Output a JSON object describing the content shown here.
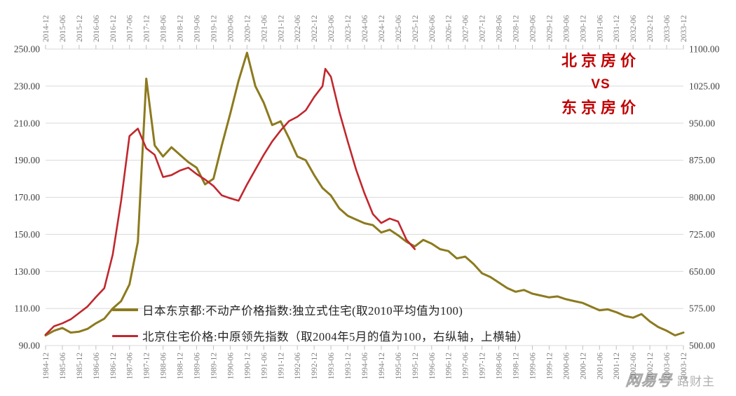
{
  "title": {
    "line1": "北京房价",
    "line2": "VS",
    "line3": "东京房价",
    "color": "#C00000"
  },
  "legend": {
    "items": [
      {
        "label": "日本东京都:不动产价格指数:独立式住宅(取2010平均值为100)",
        "color": "#8C7A1E"
      },
      {
        "label": "北京住宅价格:中原领先指数（取2004年5月的值为100，右纵轴，上横轴）",
        "color": "#C1272D"
      }
    ]
  },
  "watermark": {
    "logo": "网易号",
    "text": "路财主"
  },
  "colors": {
    "gridline": "#D9D9D9",
    "tick": "#BFBFBF",
    "date_label": "#808080",
    "number_label": "#3F3F3F"
  },
  "chart_data": {
    "type": "line",
    "title": "北京房价 VS 东京房价",
    "grid": "horizontal",
    "legend_position": "inside bottom-left",
    "left_axis": {
      "min": 90,
      "max": 250,
      "step": 20,
      "labels": [
        "250.00",
        "230.00",
        "210.00",
        "190.00",
        "170.00",
        "150.00",
        "130.00",
        "110.00",
        "90.00"
      ]
    },
    "right_axis": {
      "min": 500,
      "max": 1100,
      "step": 75,
      "labels": [
        "1100.00",
        "1025.00",
        "950.00",
        "875.00",
        "800.00",
        "725.00",
        "650.00",
        "575.00",
        "500.00"
      ]
    },
    "top_axis": {
      "start": "2014-12",
      "end": "2033-12",
      "labels": [
        "2014-12",
        "2015-06",
        "2015-12",
        "2016-06",
        "2016-12",
        "2017-06",
        "2017-12",
        "2018-06",
        "2018-12",
        "2019-06",
        "2019-12",
        "2020-06",
        "2020-12",
        "2021-06",
        "2021-12",
        "2022-06",
        "2022-12",
        "2023-06",
        "2023-12",
        "2024-06",
        "2024-12",
        "2025-06",
        "2025-12",
        "2026-06",
        "2026-12",
        "2027-06",
        "2027-12",
        "2028-06",
        "2028-12",
        "2029-06",
        "2029-12",
        "2030-06",
        "2030-12",
        "2031-06",
        "2031-12",
        "2032-06",
        "2032-12",
        "2033-06",
        "2033-12"
      ]
    },
    "bottom_axis": {
      "start": "1984-12",
      "end": "2003-12",
      "labels": [
        "1984-12",
        "1985-06",
        "1985-12",
        "1986-06",
        "1986-12",
        "1987-06",
        "1987-12",
        "1988-06",
        "1988-12",
        "1989-06",
        "1989-12",
        "1990-06",
        "1990-12",
        "1991-06",
        "1991-12",
        "1992-06",
        "1992-12",
        "1993-06",
        "1993-12",
        "1994-06",
        "1994-12",
        "1995-06",
        "1995-12",
        "1996-06",
        "1996-12",
        "1997-06",
        "1997-12",
        "1998-06",
        "1998-12",
        "1999-06",
        "1999-12",
        "2000-06",
        "2000-12",
        "2001-06",
        "2001-12",
        "2002-06",
        "2002-12",
        "2003-06",
        "2003-12"
      ]
    },
    "series": [
      {
        "name": "日本东京都:不动产价格指数:独立式住宅(取2010平均值为100)",
        "axis": "left",
        "x_axis": "bottom",
        "color": "#8C7A1E",
        "width": 3,
        "x": [
          "1984-12",
          "1985-03",
          "1985-06",
          "1985-09",
          "1985-12",
          "1986-03",
          "1986-06",
          "1986-09",
          "1986-12",
          "1987-03",
          "1987-06",
          "1987-09",
          "1987-12",
          "1988-03",
          "1988-06",
          "1988-09",
          "1988-12",
          "1989-03",
          "1989-06",
          "1989-09",
          "1989-12",
          "1990-03",
          "1990-06",
          "1990-09",
          "1990-12",
          "1991-03",
          "1991-06",
          "1991-09",
          "1991-12",
          "1992-03",
          "1992-06",
          "1992-09",
          "1992-12",
          "1993-03",
          "1993-06",
          "1993-09",
          "1993-12",
          "1994-03",
          "1994-06",
          "1994-09",
          "1994-12",
          "1995-03",
          "1995-06",
          "1995-09",
          "1995-12",
          "1996-03",
          "1996-06",
          "1996-09",
          "1996-12",
          "1997-03",
          "1997-06",
          "1997-09",
          "1997-12",
          "1998-03",
          "1998-06",
          "1998-09",
          "1998-12",
          "1999-03",
          "1999-06",
          "1999-09",
          "1999-12",
          "2000-03",
          "2000-06",
          "2000-09",
          "2000-12",
          "2001-03",
          "2001-06",
          "2001-09",
          "2001-12",
          "2002-03",
          "2002-06",
          "2002-09",
          "2002-12",
          "2003-03",
          "2003-06",
          "2003-09",
          "2003-12"
        ],
        "values": [
          95.5,
          98,
          99.5,
          97,
          97.5,
          99,
          102,
          104.5,
          110,
          114,
          123,
          146,
          234,
          198,
          192,
          197,
          193,
          189,
          186,
          177,
          180,
          198,
          215,
          233,
          248,
          230,
          221,
          209,
          211,
          202,
          192,
          190,
          182,
          175,
          171,
          164,
          160,
          158,
          156,
          155,
          151,
          152.5,
          149.5,
          146,
          143.5,
          147,
          145,
          142,
          141,
          137,
          138,
          134,
          129,
          127,
          124,
          121,
          119,
          120,
          118,
          117,
          116,
          116.5,
          115,
          114,
          113,
          111,
          109,
          109.5,
          108,
          106,
          105,
          107,
          103,
          100,
          98,
          95.5,
          97
        ]
      },
      {
        "name": "北京住宅价格:中原领先指数",
        "axis": "right",
        "x_axis": "top",
        "color": "#C1272D",
        "width": 2.6,
        "x": [
          "2014-12",
          "2015-03",
          "2015-06",
          "2015-09",
          "2015-12",
          "2016-03",
          "2016-06",
          "2016-09",
          "2016-12",
          "2017-03",
          "2017-06",
          "2017-09",
          "2017-12",
          "2018-03",
          "2018-06",
          "2018-09",
          "2018-12",
          "2019-03",
          "2019-06",
          "2019-09",
          "2019-12",
          "2020-03",
          "2020-06",
          "2020-09",
          "2020-12",
          "2021-03",
          "2021-06",
          "2021-09",
          "2021-12",
          "2022-03",
          "2022-06",
          "2022-09",
          "2022-12",
          "2023-03",
          "2023-04",
          "2023-06",
          "2023-09",
          "2023-12",
          "2024-03",
          "2024-06",
          "2024-09",
          "2024-12",
          "2025-03",
          "2025-06",
          "2025-09",
          "2025-12"
        ],
        "values": [
          522,
          539,
          545,
          553,
          566,
          579,
          598,
          616,
          684,
          793,
          924,
          939,
          899,
          886,
          841,
          845,
          854,
          860,
          847,
          836,
          823,
          804,
          798,
          793,
          826,
          856,
          886,
          913,
          935,
          954,
          963,
          976,
          1003,
          1025,
          1060,
          1044,
          973,
          913,
          856,
          808,
          766,
          748,
          757,
          751,
          714,
          695
        ]
      }
    ]
  }
}
